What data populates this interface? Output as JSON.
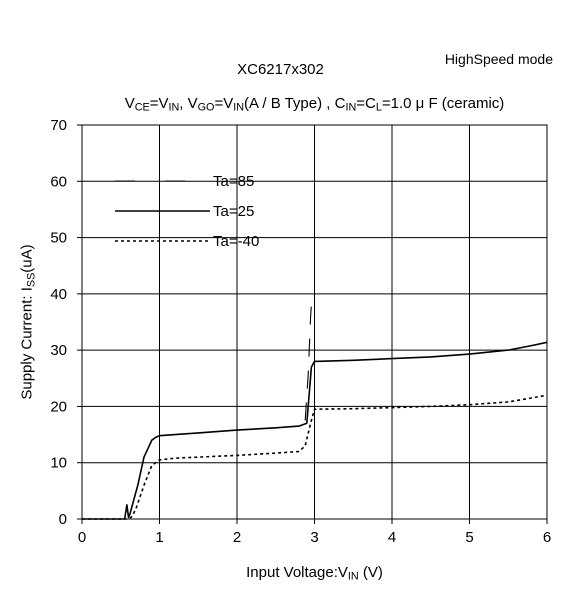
{
  "chart_data": {
    "type": "line",
    "mode_label": "HighSpeed mode",
    "title": "XC6217x302",
    "conditions": {
      "vce": "V",
      "vce_sub": "CE",
      "eq1": "=V",
      "in1": "IN",
      "sep": ", V",
      "vgo_sub": "GO",
      "eq2": "=V",
      "in2": "IN",
      "type_text": "(A / B Type) , C",
      "cin_sub": "IN",
      "eq3": "=C",
      "cl_sub": "L",
      "cap": "=1.0 μ F (ceramic)"
    },
    "xlabel": {
      "main": "Input Voltage:V",
      "sub": "IN",
      "unit": " (V)"
    },
    "ylabel": {
      "main": "Supply Current: I",
      "sub": "SS",
      "unit": "(uA)"
    },
    "xlim": [
      0,
      6
    ],
    "ylim": [
      0,
      70
    ],
    "xticks": [
      "0",
      "1",
      "2",
      "3",
      "4",
      "5",
      "6"
    ],
    "yticks": [
      "0",
      "10",
      "20",
      "30",
      "40",
      "50",
      "60",
      "70"
    ],
    "xtick_values": [
      0,
      1,
      2,
      3,
      4,
      5,
      6
    ],
    "ytick_values": [
      0,
      10,
      20,
      30,
      40,
      50,
      60,
      70
    ],
    "grid": true,
    "legend_position": "top-left",
    "series": [
      {
        "name": "Ta=85",
        "dash": "dash-long",
        "x": [
          2.88,
          2.92,
          2.95,
          2.97
        ],
        "y": [
          17.5,
          26,
          36,
          40
        ]
      },
      {
        "name": "Ta=25",
        "dash": "solid",
        "x": [
          0,
          0.55,
          0.58,
          0.6,
          0.62,
          0.65,
          0.72,
          0.8,
          0.9,
          0.95,
          1.0,
          1.2,
          1.5,
          2.0,
          2.5,
          2.8,
          2.9,
          2.93,
          2.96,
          3.0,
          3.5,
          4.0,
          4.5,
          5.0,
          5.5,
          5.8,
          6.0
        ],
        "y": [
          0,
          0,
          2.5,
          0.3,
          1.0,
          2.5,
          6,
          11,
          14,
          14.5,
          14.8,
          15,
          15.3,
          15.8,
          16.2,
          16.5,
          17,
          22,
          27,
          28,
          28.2,
          28.5,
          28.8,
          29.3,
          30,
          30.8,
          31.4
        ]
      },
      {
        "name": "Ta=-40",
        "dash": "dotted",
        "x": [
          0,
          0.6,
          0.65,
          0.7,
          0.8,
          0.9,
          1.0,
          1.2,
          1.5,
          2.0,
          2.5,
          2.8,
          2.88,
          2.95,
          3.0,
          3.5,
          4.0,
          4.5,
          5.0,
          5.5,
          5.8,
          6.0
        ],
        "y": [
          0,
          0,
          0.5,
          2,
          6,
          9.5,
          10.5,
          10.8,
          11,
          11.3,
          11.7,
          12,
          13,
          17,
          19.5,
          19.6,
          19.8,
          20,
          20.3,
          20.8,
          21.5,
          22
        ]
      }
    ]
  }
}
